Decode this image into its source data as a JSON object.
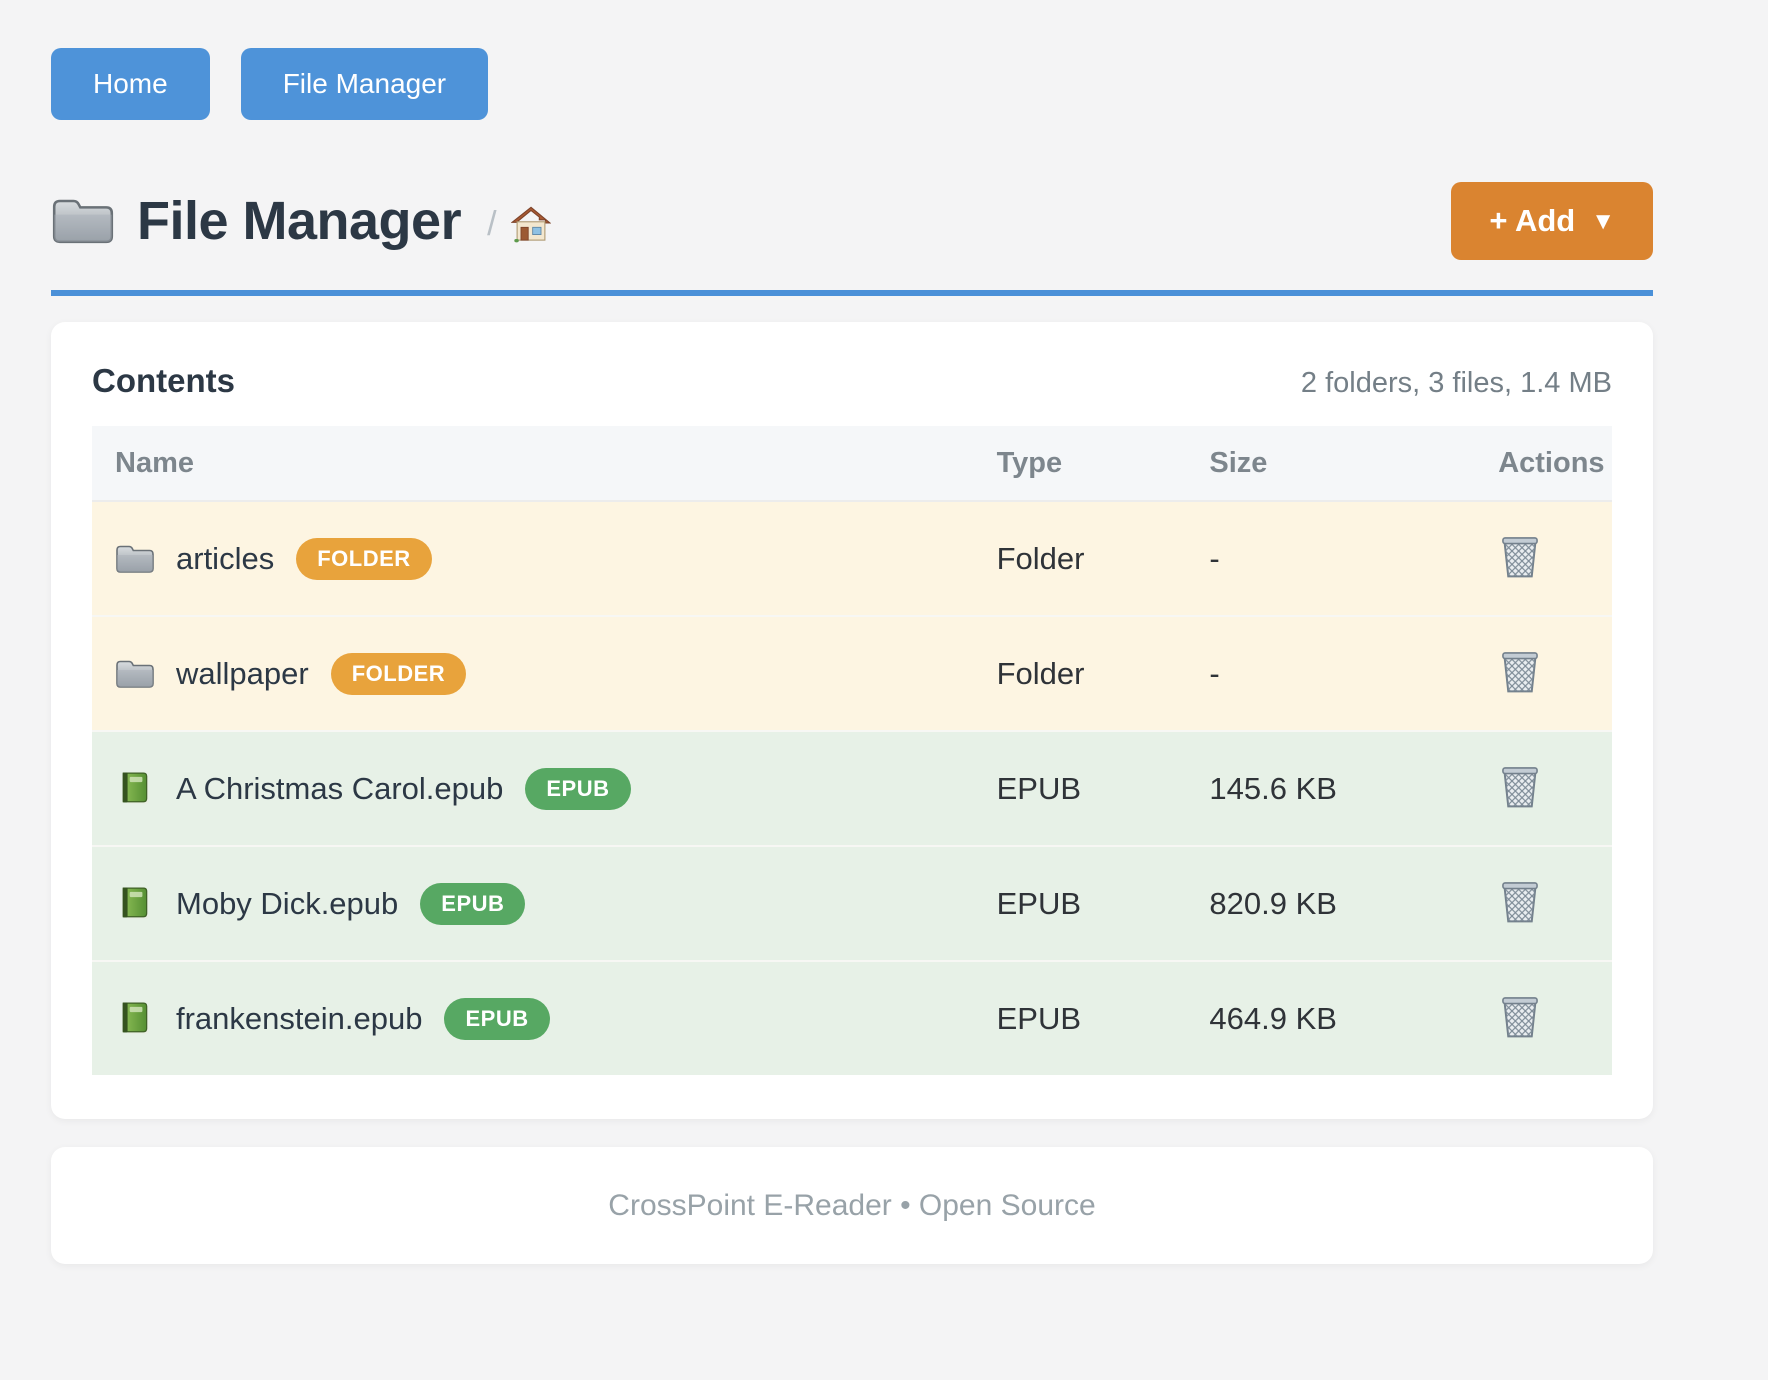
{
  "nav": {
    "buttons": [
      {
        "label": "Home"
      },
      {
        "label": "File Manager"
      }
    ]
  },
  "header": {
    "title": "File Manager",
    "title_icon": "folder-icon",
    "breadcrumb": {
      "separator": "/",
      "home_icon": "house-icon"
    },
    "add_button": {
      "label": "+ Add",
      "caret": "▼"
    }
  },
  "contents": {
    "title": "Contents",
    "summary": "2 folders, 3 files, 1.4 MB",
    "table": {
      "headers": [
        "Name",
        "Type",
        "Size",
        "Actions"
      ],
      "rows": [
        {
          "name": "articles",
          "badge": "FOLDER",
          "type": "Folder",
          "size": "-",
          "kind": "folder",
          "icon": "folder-icon",
          "action_icon": "trash-icon"
        },
        {
          "name": "wallpaper",
          "badge": "FOLDER",
          "type": "Folder",
          "size": "-",
          "kind": "folder",
          "icon": "folder-icon",
          "action_icon": "trash-icon"
        },
        {
          "name": "A Christmas Carol.epub",
          "badge": "EPUB",
          "type": "EPUB",
          "size": "145.6 KB",
          "kind": "epub",
          "icon": "book-icon",
          "action_icon": "trash-icon"
        },
        {
          "name": "Moby Dick.epub",
          "badge": "EPUB",
          "type": "EPUB",
          "size": "820.9 KB",
          "kind": "epub",
          "icon": "book-icon",
          "action_icon": "trash-icon"
        },
        {
          "name": "frankenstein.epub",
          "badge": "EPUB",
          "type": "EPUB",
          "size": "464.9 KB",
          "kind": "epub",
          "icon": "book-icon",
          "action_icon": "trash-icon"
        }
      ]
    }
  },
  "footer": {
    "text": "CrossPoint E-Reader • Open Source"
  },
  "colors": {
    "accent_blue": "#4e93d9",
    "rule_blue": "#4a90d8",
    "accent_orange": "#da8430",
    "badge_folder": "#e8a33c",
    "badge_epub": "#57a863",
    "row_folder_bg": "#fdf5e2",
    "row_epub_bg": "#e7f1e7",
    "page_bg": "#f4f4f5",
    "heading_text": "#2c3845",
    "muted_text": "#747f87"
  }
}
